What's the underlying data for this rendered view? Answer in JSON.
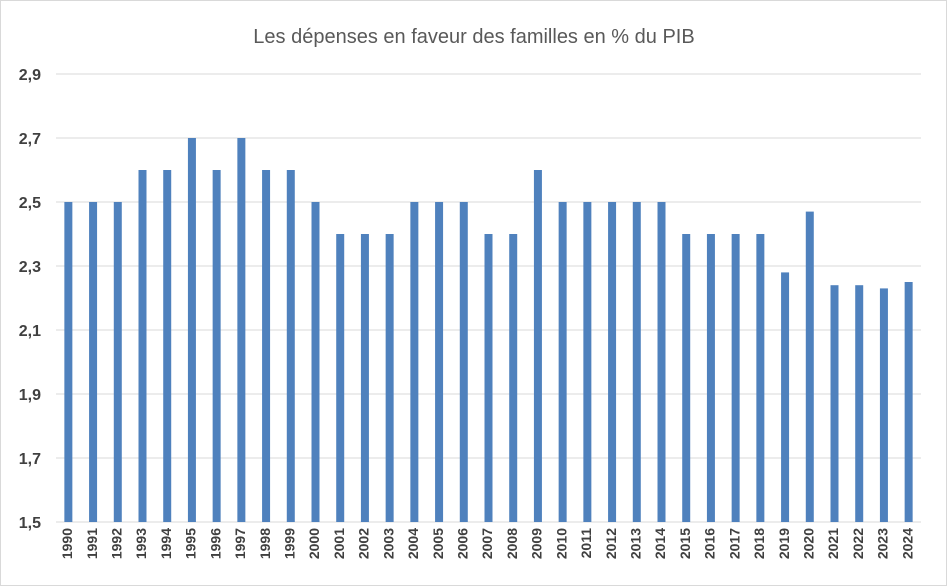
{
  "chart_data": {
    "type": "bar",
    "title": "Les dépenses en faveur des familles en % du PIB",
    "xlabel": "",
    "ylabel": "",
    "ylim": [
      1.5,
      2.9
    ],
    "yticks": [
      "1,5",
      "1,7",
      "1,9",
      "2,1",
      "2,3",
      "2,5",
      "2,7",
      "2,9"
    ],
    "grid": true,
    "legend": "none",
    "bar_color": "#4f81bd",
    "categories": [
      "1990",
      "1991",
      "1992",
      "1993",
      "1994",
      "1995",
      "1996",
      "1997",
      "1998",
      "1999",
      "2000",
      "2001",
      "2002",
      "2003",
      "2004",
      "2005",
      "2006",
      "2007",
      "2008",
      "2009",
      "2010",
      "2011",
      "2012",
      "2013",
      "2014",
      "2015",
      "2016",
      "2017",
      "2018",
      "2019",
      "2020",
      "2021",
      "2022",
      "2023",
      "2024"
    ],
    "values": [
      2.5,
      2.5,
      2.5,
      2.6,
      2.6,
      2.7,
      2.6,
      2.7,
      2.6,
      2.6,
      2.5,
      2.4,
      2.4,
      2.4,
      2.5,
      2.5,
      2.5,
      2.4,
      2.4,
      2.6,
      2.5,
      2.5,
      2.5,
      2.5,
      2.5,
      2.4,
      2.4,
      2.4,
      2.4,
      2.28,
      2.47,
      2.24,
      2.24,
      2.23,
      2.25
    ]
  }
}
